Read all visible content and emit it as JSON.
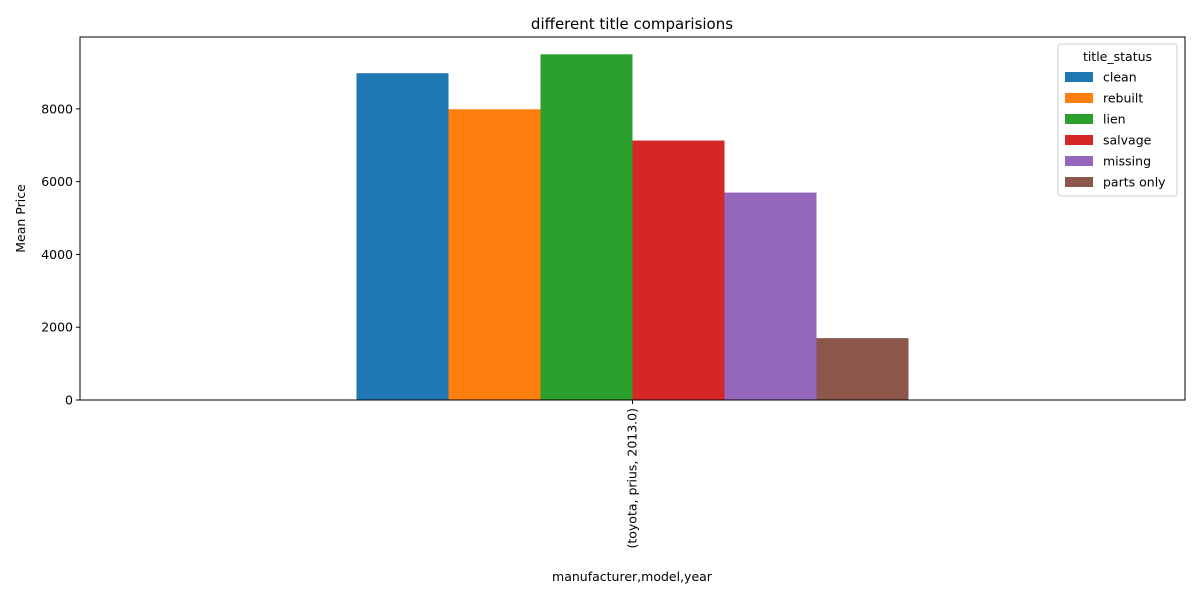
{
  "chart_data": {
    "type": "bar",
    "title": "different title comparisions",
    "xlabel": "manufacturer,model,year",
    "ylabel": "Mean Price",
    "categories": [
      "(toyota, prius, 2013.0)"
    ],
    "series": [
      {
        "name": "clean",
        "values": [
          8980
        ],
        "color": "#1f77b4"
      },
      {
        "name": "rebuilt",
        "values": [
          7990
        ],
        "color": "#ff7f0e"
      },
      {
        "name": "lien",
        "values": [
          9500
        ],
        "color": "#2ca02c"
      },
      {
        "name": "salvage",
        "values": [
          7130
        ],
        "color": "#d62728"
      },
      {
        "name": "missing",
        "values": [
          5700
        ],
        "color": "#9467bd"
      },
      {
        "name": "parts only",
        "values": [
          1700
        ],
        "color": "#8c564b"
      }
    ],
    "ylim": [
      0,
      9975
    ],
    "yticks": [
      0,
      2000,
      4000,
      6000,
      8000
    ],
    "legend_title": "title_status",
    "legend_position": "top-right",
    "grid": false
  }
}
